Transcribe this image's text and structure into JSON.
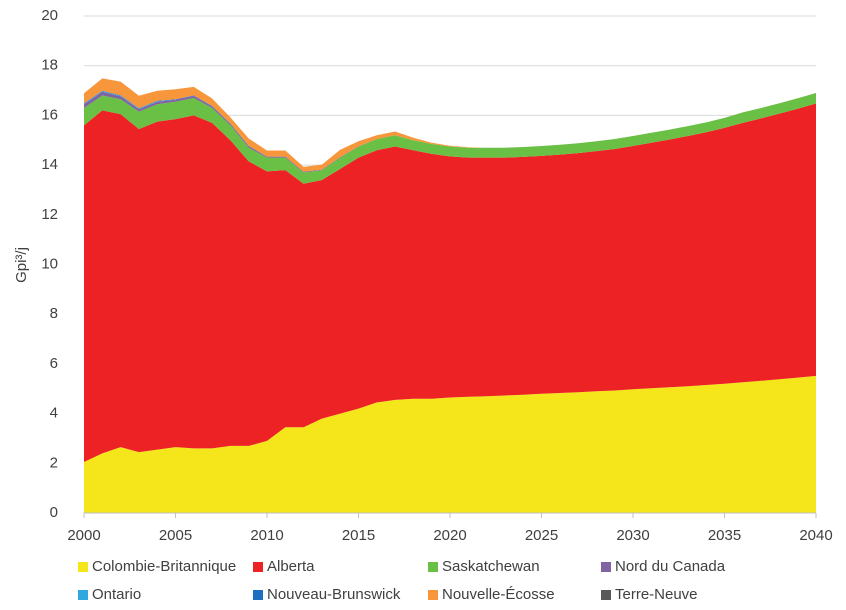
{
  "chart_data": {
    "type": "stacked_area",
    "y_label": "Gpi³/j",
    "x": [
      2000,
      2001,
      2002,
      2003,
      2004,
      2005,
      2006,
      2007,
      2008,
      2009,
      2010,
      2011,
      2012,
      2013,
      2014,
      2015,
      2016,
      2017,
      2018,
      2019,
      2020,
      2021,
      2022,
      2023,
      2024,
      2025,
      2026,
      2027,
      2028,
      2029,
      2030,
      2031,
      2032,
      2033,
      2034,
      2035,
      2036,
      2037,
      2038,
      2039,
      2040
    ],
    "xlim": [
      2000,
      2040
    ],
    "xticks": [
      2000,
      2005,
      2010,
      2015,
      2020,
      2025,
      2030,
      2035,
      2040
    ],
    "ylim": [
      0,
      20
    ],
    "yticks": [
      0,
      2,
      4,
      6,
      8,
      10,
      12,
      14,
      16,
      18,
      20
    ],
    "grid": true,
    "series": [
      {
        "name": "Colombie-Britannique",
        "color": "#f5e61b",
        "values": [
          2.05,
          2.4,
          2.65,
          2.45,
          2.55,
          2.65,
          2.6,
          2.6,
          2.7,
          2.7,
          2.9,
          3.45,
          3.45,
          3.8,
          4.0,
          4.2,
          4.45,
          4.55,
          4.6,
          4.6,
          4.65,
          4.68,
          4.7,
          4.73,
          4.76,
          4.8,
          4.83,
          4.86,
          4.9,
          4.93,
          4.98,
          5.02,
          5.06,
          5.1,
          5.15,
          5.2,
          5.26,
          5.32,
          5.38,
          5.45,
          5.52
        ]
      },
      {
        "name": "Alberta",
        "color": "#ed2224",
        "values": [
          13.55,
          13.8,
          13.4,
          13.0,
          13.2,
          13.2,
          13.4,
          13.1,
          12.3,
          11.45,
          10.85,
          10.35,
          9.8,
          9.6,
          9.85,
          10.1,
          10.15,
          10.2,
          10.0,
          9.85,
          9.7,
          9.62,
          9.6,
          9.57,
          9.57,
          9.57,
          9.59,
          9.62,
          9.66,
          9.72,
          9.79,
          9.88,
          9.97,
          10.07,
          10.17,
          10.3,
          10.44,
          10.56,
          10.69,
          10.82,
          10.96
        ]
      },
      {
        "name": "Saskatchewan",
        "color": "#6abf45",
        "values": [
          0.7,
          0.6,
          0.6,
          0.7,
          0.7,
          0.7,
          0.7,
          0.6,
          0.6,
          0.55,
          0.55,
          0.5,
          0.45,
          0.4,
          0.45,
          0.45,
          0.45,
          0.45,
          0.4,
          0.4,
          0.4,
          0.4,
          0.4,
          0.4,
          0.4,
          0.4,
          0.4,
          0.4,
          0.4,
          0.4,
          0.4,
          0.4,
          0.4,
          0.4,
          0.4,
          0.4,
          0.42,
          0.42,
          0.42,
          0.42,
          0.42
        ]
      },
      {
        "name": "Nord du Canada",
        "color": "#8064a2",
        "values": [
          0.15,
          0.15,
          0.12,
          0.1,
          0.1,
          0.08,
          0.08,
          0.06,
          0.05,
          0.05,
          0.04,
          0.04,
          0.03,
          0.02,
          0.02,
          0.01,
          0,
          0,
          0,
          0,
          0,
          0,
          0,
          0,
          0,
          0,
          0,
          0,
          0,
          0,
          0,
          0,
          0,
          0,
          0,
          0,
          0,
          0,
          0,
          0,
          0
        ]
      },
      {
        "name": "Ontario",
        "color": "#2ea8df",
        "values": [
          0.02,
          0.02,
          0.02,
          0.02,
          0.02,
          0,
          0,
          0,
          0,
          0,
          0,
          0,
          0,
          0,
          0,
          0,
          0,
          0,
          0,
          0,
          0,
          0,
          0,
          0,
          0,
          0,
          0,
          0,
          0,
          0,
          0,
          0,
          0,
          0,
          0,
          0,
          0,
          0,
          0,
          0,
          0
        ]
      },
      {
        "name": "Nouveau-Brunswick",
        "color": "#1f6fbf",
        "values": [
          0.02,
          0.02,
          0.02,
          0.02,
          0.02,
          0.02,
          0.02,
          0.02,
          0.02,
          0.02,
          0,
          0,
          0,
          0,
          0,
          0,
          0,
          0,
          0,
          0,
          0,
          0,
          0,
          0,
          0,
          0,
          0,
          0,
          0,
          0,
          0,
          0,
          0,
          0,
          0,
          0,
          0,
          0,
          0,
          0,
          0
        ]
      },
      {
        "name": "Nouvelle-Écosse",
        "color": "#f7963b",
        "values": [
          0.4,
          0.5,
          0.55,
          0.5,
          0.4,
          0.4,
          0.35,
          0.3,
          0.25,
          0.3,
          0.25,
          0.25,
          0.2,
          0.2,
          0.3,
          0.2,
          0.15,
          0.15,
          0.1,
          0.05,
          0.03,
          0.02,
          0,
          0,
          0,
          0,
          0,
          0,
          0,
          0,
          0,
          0,
          0,
          0,
          0,
          0,
          0,
          0,
          0,
          0,
          0
        ]
      },
      {
        "name": "Terre-Neuve",
        "color": "#595959",
        "values": [
          0,
          0,
          0,
          0,
          0,
          0,
          0,
          0,
          0,
          0,
          0,
          0,
          0,
          0,
          0,
          0,
          0,
          0,
          0,
          0,
          0,
          0,
          0,
          0,
          0,
          0,
          0,
          0,
          0,
          0,
          0,
          0,
          0,
          0,
          0,
          0,
          0,
          0,
          0,
          0,
          0
        ]
      }
    ]
  }
}
